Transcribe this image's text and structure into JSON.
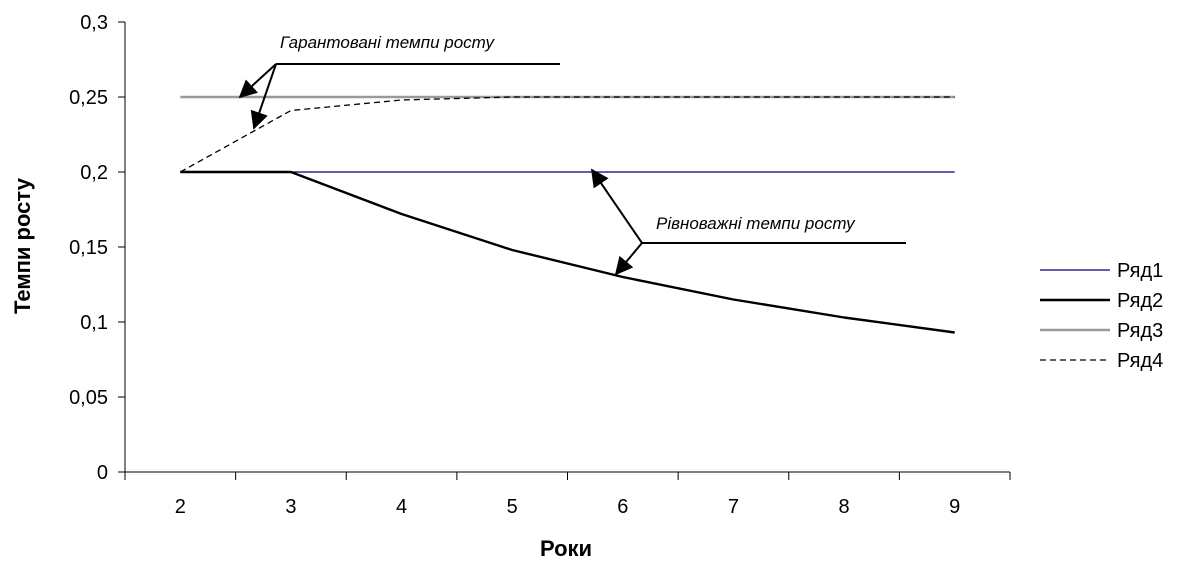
{
  "chart_data": {
    "type": "line",
    "title": "",
    "xlabel": "Роки",
    "ylabel": "Темпи росту",
    "categories": [
      "2",
      "3",
      "4",
      "5",
      "6",
      "7",
      "8",
      "9"
    ],
    "x": [
      2,
      3,
      4,
      5,
      6,
      7,
      8,
      9
    ],
    "ylim": [
      0,
      0.3
    ],
    "y_ticks": [
      0,
      0.05,
      0.1,
      0.15,
      0.2,
      0.25,
      0.3
    ],
    "y_tick_labels": [
      "0",
      "0,05",
      "0,1",
      "0,15",
      "0,2",
      "0,25",
      "0,3"
    ],
    "grid": false,
    "legend_position": "right",
    "series": [
      {
        "name": "Ряд1",
        "color": "#00007f",
        "style": "solid",
        "values": [
          0.2,
          0.2,
          0.2,
          0.2,
          0.2,
          0.2,
          0.2,
          0.2
        ]
      },
      {
        "name": "Ряд2",
        "color": "#000000",
        "style": "solid-thick",
        "values": [
          0.2,
          0.2,
          0.172,
          0.148,
          0.13,
          0.115,
          0.103,
          0.093
        ]
      },
      {
        "name": "Ряд3",
        "color": "#999999",
        "style": "solid-thick",
        "values": [
          0.25,
          0.25,
          0.25,
          0.25,
          0.25,
          0.25,
          0.25,
          0.25
        ]
      },
      {
        "name": "Ряд4",
        "color": "#000000",
        "style": "dashed",
        "values": [
          0.2,
          0.241,
          0.248,
          0.25,
          0.25,
          0.25,
          0.25,
          0.25
        ]
      }
    ],
    "annotations": [
      {
        "text": "Гарантовані темпи росту",
        "target": "Ряд3, Ряд4"
      },
      {
        "text": "Рівноважні темпи росту",
        "target": "Ряд1, Ряд2"
      }
    ]
  }
}
